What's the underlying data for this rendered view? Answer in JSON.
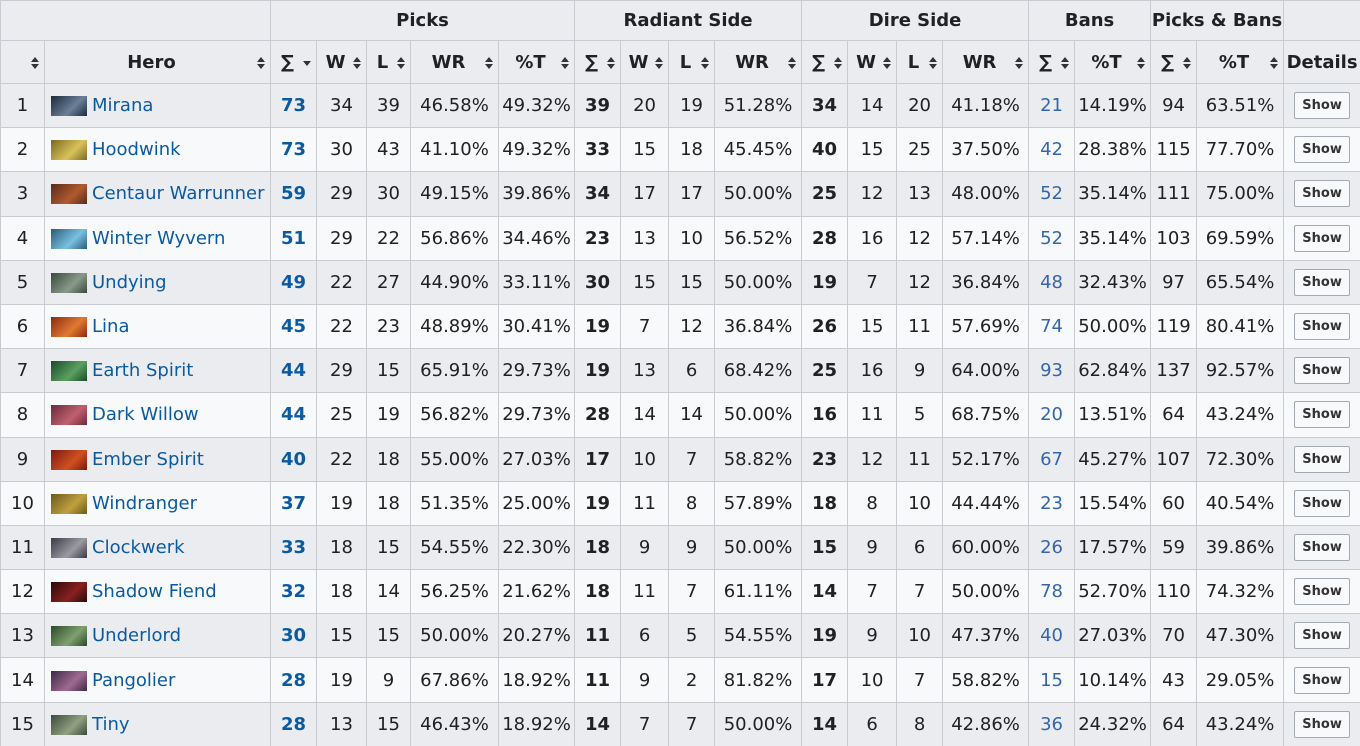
{
  "table": {
    "group_headers": [
      "Picks",
      "Radiant Side",
      "Dire Side",
      "Bans",
      "Picks & Bans"
    ],
    "columns": [
      "Hero",
      "∑",
      "W",
      "L",
      "WR",
      "%T",
      "∑",
      "W",
      "L",
      "WR",
      "∑",
      "W",
      "L",
      "WR",
      "∑",
      "%T",
      "∑",
      "%T",
      "Details"
    ],
    "rows": [
      [
        1,
        "Mirana",
        73,
        34,
        39,
        "46.58%",
        "49.32%",
        39,
        20,
        19,
        "51.28%",
        34,
        14,
        20,
        "41.18%",
        21,
        "14.19%",
        94,
        "63.51%",
        "Show"
      ],
      [
        2,
        "Hoodwink",
        73,
        30,
        43,
        "41.10%",
        "49.32%",
        33,
        15,
        18,
        "45.45%",
        40,
        15,
        25,
        "37.50%",
        42,
        "28.38%",
        115,
        "77.70%",
        "Show"
      ],
      [
        3,
        "Centaur Warrunner",
        59,
        29,
        30,
        "49.15%",
        "39.86%",
        34,
        17,
        17,
        "50.00%",
        25,
        12,
        13,
        "48.00%",
        52,
        "35.14%",
        111,
        "75.00%",
        "Show"
      ],
      [
        4,
        "Winter Wyvern",
        51,
        29,
        22,
        "56.86%",
        "34.46%",
        23,
        13,
        10,
        "56.52%",
        28,
        16,
        12,
        "57.14%",
        52,
        "35.14%",
        103,
        "69.59%",
        "Show"
      ],
      [
        5,
        "Undying",
        49,
        22,
        27,
        "44.90%",
        "33.11%",
        30,
        15,
        15,
        "50.00%",
        19,
        7,
        12,
        "36.84%",
        48,
        "32.43%",
        97,
        "65.54%",
        "Show"
      ],
      [
        6,
        "Lina",
        45,
        22,
        23,
        "48.89%",
        "30.41%",
        19,
        7,
        12,
        "36.84%",
        26,
        15,
        11,
        "57.69%",
        74,
        "50.00%",
        119,
        "80.41%",
        "Show"
      ],
      [
        7,
        "Earth Spirit",
        44,
        29,
        15,
        "65.91%",
        "29.73%",
        19,
        13,
        6,
        "68.42%",
        25,
        16,
        9,
        "64.00%",
        93,
        "62.84%",
        137,
        "92.57%",
        "Show"
      ],
      [
        8,
        "Dark Willow",
        44,
        25,
        19,
        "56.82%",
        "29.73%",
        28,
        14,
        14,
        "50.00%",
        16,
        11,
        5,
        "68.75%",
        20,
        "13.51%",
        64,
        "43.24%",
        "Show"
      ],
      [
        9,
        "Ember Spirit",
        40,
        22,
        18,
        "55.00%",
        "27.03%",
        17,
        10,
        7,
        "58.82%",
        23,
        12,
        11,
        "52.17%",
        67,
        "45.27%",
        107,
        "72.30%",
        "Show"
      ],
      [
        10,
        "Windranger",
        37,
        19,
        18,
        "51.35%",
        "25.00%",
        19,
        11,
        8,
        "57.89%",
        18,
        8,
        10,
        "44.44%",
        23,
        "15.54%",
        60,
        "40.54%",
        "Show"
      ],
      [
        11,
        "Clockwerk",
        33,
        18,
        15,
        "54.55%",
        "22.30%",
        18,
        9,
        9,
        "50.00%",
        15,
        9,
        6,
        "60.00%",
        26,
        "17.57%",
        59,
        "39.86%",
        "Show"
      ],
      [
        12,
        "Shadow Fiend",
        32,
        18,
        14,
        "56.25%",
        "21.62%",
        18,
        11,
        7,
        "61.11%",
        14,
        7,
        7,
        "50.00%",
        78,
        "52.70%",
        110,
        "74.32%",
        "Show"
      ],
      [
        13,
        "Underlord",
        30,
        15,
        15,
        "50.00%",
        "20.27%",
        11,
        6,
        5,
        "54.55%",
        19,
        9,
        10,
        "47.37%",
        40,
        "27.03%",
        70,
        "47.30%",
        "Show"
      ],
      [
        14,
        "Pangolier",
        28,
        19,
        9,
        "67.86%",
        "18.92%",
        11,
        9,
        2,
        "81.82%",
        17,
        10,
        7,
        "58.82%",
        15,
        "10.14%",
        43,
        "29.05%",
        "Show"
      ],
      [
        15,
        "Tiny",
        28,
        13,
        15,
        "46.43%",
        "18.92%",
        14,
        7,
        7,
        "50.00%",
        14,
        6,
        8,
        "42.86%",
        36,
        "24.32%",
        64,
        "43.24%",
        "Show"
      ]
    ]
  }
}
